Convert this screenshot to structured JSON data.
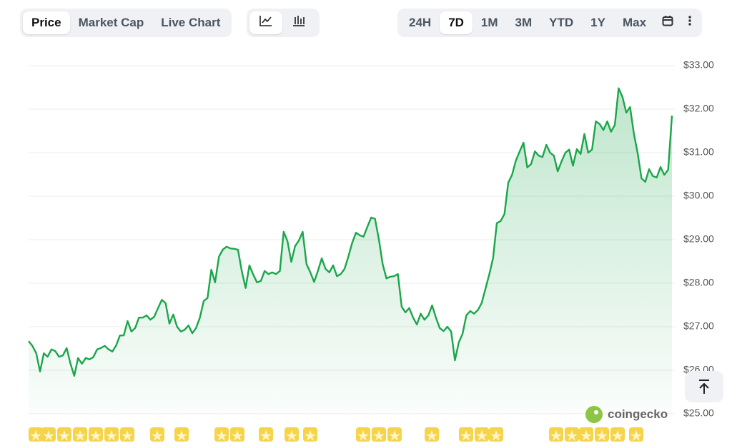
{
  "controls": {
    "views": [
      "Price",
      "Market Cap",
      "Live Chart"
    ],
    "active_view": 0,
    "ranges": [
      "24H",
      "7D",
      "1M",
      "3M",
      "YTD",
      "1Y",
      "Max"
    ],
    "active_range": 1
  },
  "watermark": "coingecko",
  "chart_data": {
    "type": "line",
    "color": "#1aa64a",
    "grid": true,
    "ylim": [
      25,
      33
    ],
    "yticks": [
      {
        "value": 25,
        "label": "$25.00"
      },
      {
        "value": 26,
        "label": "$26.00"
      },
      {
        "value": 27,
        "label": "$27.00"
      },
      {
        "value": 28,
        "label": "$28.00"
      },
      {
        "value": 29,
        "label": "$29.00"
      },
      {
        "value": 30,
        "label": "$30.00"
      },
      {
        "value": 31,
        "label": "$31.00"
      },
      {
        "value": 32,
        "label": "$32.00"
      },
      {
        "value": 33,
        "label": "$33.00"
      }
    ],
    "values": [
      26.67,
      26.56,
      26.39,
      25.97,
      26.39,
      26.31,
      26.48,
      26.44,
      26.31,
      26.34,
      26.51,
      26.15,
      25.87,
      26.28,
      26.15,
      26.28,
      26.25,
      26.3,
      26.48,
      26.51,
      26.56,
      26.48,
      26.43,
      26.57,
      26.8,
      26.8,
      27.13,
      26.89,
      26.97,
      27.21,
      27.21,
      27.26,
      27.16,
      27.23,
      27.43,
      27.62,
      27.54,
      27.07,
      27.28,
      27.0,
      26.89,
      26.93,
      27.03,
      26.85,
      26.97,
      27.21,
      27.59,
      27.66,
      28.31,
      28.02,
      28.61,
      28.77,
      28.84,
      28.8,
      28.79,
      28.77,
      28.28,
      27.89,
      28.41,
      28.2,
      28.02,
      28.05,
      28.28,
      28.21,
      28.25,
      28.21,
      28.28,
      29.18,
      28.97,
      28.49,
      28.85,
      28.98,
      29.18,
      28.44,
      28.25,
      28.03,
      28.28,
      28.57,
      28.33,
      28.25,
      28.41,
      28.16,
      28.21,
      28.33,
      28.61,
      28.93,
      29.16,
      29.1,
      29.07,
      29.3,
      29.51,
      29.48,
      29.02,
      28.44,
      28.11,
      28.15,
      28.16,
      28.21,
      27.46,
      27.33,
      27.43,
      27.21,
      27.05,
      27.3,
      27.16,
      27.26,
      27.49,
      27.21,
      26.97,
      26.9,
      27.0,
      26.89,
      26.23,
      26.64,
      26.84,
      27.26,
      27.36,
      27.3,
      27.38,
      27.54,
      27.87,
      28.2,
      28.57,
      29.38,
      29.43,
      29.59,
      30.31,
      30.49,
      30.82,
      31.03,
      31.23,
      30.66,
      30.74,
      31.03,
      30.93,
      30.9,
      31.18,
      31.0,
      30.93,
      30.57,
      30.8,
      31.0,
      31.07,
      30.7,
      31.08,
      30.97,
      31.43,
      31.0,
      31.07,
      31.72,
      31.66,
      31.52,
      31.72,
      31.48,
      31.64,
      32.48,
      32.28,
      31.92,
      32.05,
      31.44,
      30.98,
      30.41,
      30.33,
      30.62,
      30.46,
      30.43,
      30.67,
      30.49,
      30.61,
      31.85
    ]
  }
}
